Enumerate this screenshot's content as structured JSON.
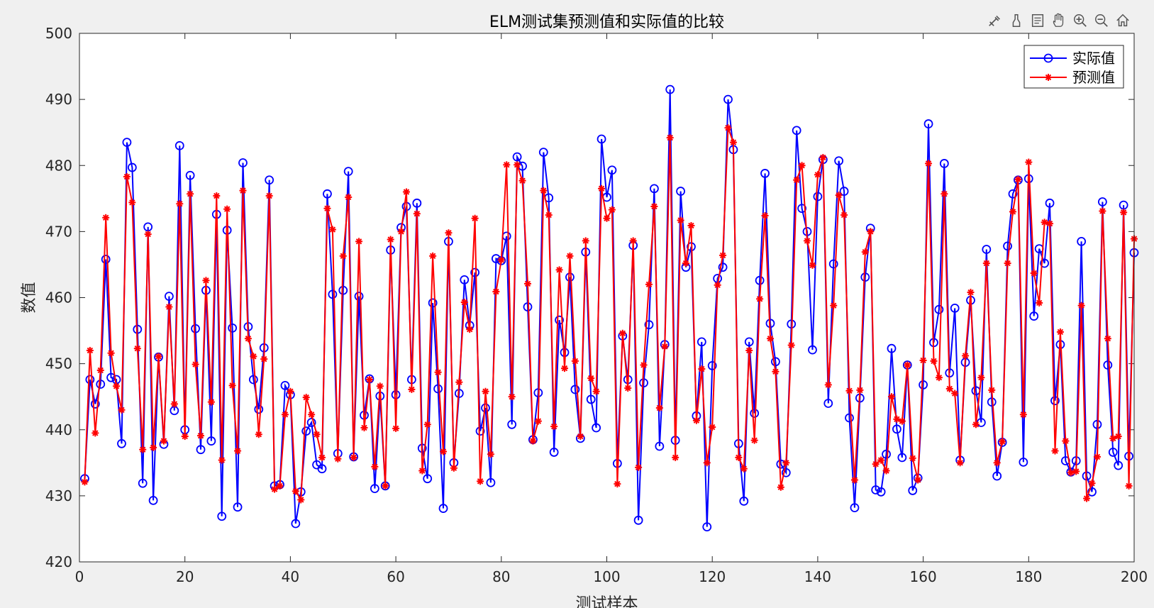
{
  "toolbar": {
    "items": [
      {
        "name": "edit-plot-icon"
      },
      {
        "name": "brush-icon"
      },
      {
        "name": "datatips-icon"
      },
      {
        "name": "pan-hand-icon"
      },
      {
        "name": "zoom-in-icon"
      },
      {
        "name": "zoom-out-icon"
      },
      {
        "name": "home-icon"
      }
    ]
  },
  "chart_data": {
    "type": "line",
    "title": "ELM测试集预测值和实际值的比较",
    "xlabel": "测试样本",
    "ylabel": "数值",
    "xlim": [
      0,
      200
    ],
    "ylim": [
      420,
      500
    ],
    "xticks": [
      0,
      20,
      40,
      60,
      80,
      100,
      120,
      140,
      160,
      180,
      200
    ],
    "yticks": [
      420,
      430,
      440,
      450,
      460,
      470,
      480,
      490,
      500
    ],
    "grid": false,
    "legend_position": "top-right",
    "series": [
      {
        "name": "实际值",
        "color": "#0000ff",
        "marker": "circle",
        "x": [
          1,
          2,
          3,
          4,
          5,
          6,
          7,
          8,
          9,
          10,
          11,
          12,
          13,
          14,
          15,
          16,
          17,
          18,
          19,
          20,
          21,
          22,
          23,
          24,
          25,
          26,
          27,
          28,
          29,
          30,
          31,
          32,
          33,
          34,
          35,
          36,
          37,
          38,
          39,
          40,
          41,
          42,
          43,
          44,
          45,
          46,
          47,
          48,
          49,
          50,
          51,
          52,
          53,
          54,
          55,
          56,
          57,
          58,
          59,
          60,
          61,
          62,
          63,
          64,
          65,
          66,
          67,
          68,
          69,
          70,
          71,
          72,
          73,
          74,
          75,
          76,
          77,
          78,
          79,
          80,
          81,
          82,
          83,
          84,
          85,
          86,
          87,
          88,
          89,
          90,
          91,
          92,
          93,
          94,
          95,
          96,
          97,
          98,
          99,
          100,
          101,
          102,
          103,
          104,
          105,
          106,
          107,
          108,
          109,
          110,
          111,
          112,
          113,
          114,
          115,
          116,
          117,
          118,
          119,
          120,
          121,
          122,
          123,
          124,
          125,
          126,
          127,
          128,
          129,
          130,
          131,
          132,
          133,
          134,
          135,
          136,
          137,
          138,
          139,
          140,
          141,
          142,
          143,
          144,
          145,
          146,
          147,
          148,
          149,
          150,
          151,
          152,
          153,
          154,
          155,
          156,
          157,
          158,
          159,
          160,
          161,
          162,
          163,
          164,
          165,
          166,
          167,
          168,
          169,
          170,
          171,
          172,
          173,
          174,
          175,
          176,
          177,
          178,
          179,
          180,
          181,
          182,
          183,
          184,
          185,
          186,
          187,
          188,
          189,
          190,
          191,
          192,
          193,
          194,
          195,
          196,
          197,
          198,
          199,
          200
        ],
        "values": [
          432.6,
          447.6,
          443.9,
          446.9,
          465.8,
          447.9,
          447.6,
          437.9,
          483.5,
          479.7,
          455.2,
          431.9,
          470.7,
          429.3,
          451.0,
          437.8,
          460.2,
          442.9,
          483.0,
          440.0,
          478.5,
          455.3,
          437.0,
          461.1,
          438.3,
          472.6,
          426.9,
          470.2,
          455.4,
          428.3,
          480.4,
          455.6,
          447.6,
          443.1,
          452.4,
          477.8,
          431.5,
          431.7,
          446.7,
          445.3,
          425.8,
          430.6,
          439.8,
          441.1,
          434.7,
          434.1,
          475.7,
          460.5,
          436.4,
          461.1,
          479.1,
          435.9,
          460.2,
          442.2,
          447.7,
          431.1,
          445.1,
          431.5,
          467.2,
          445.3,
          470.6,
          473.8,
          447.6,
          474.3,
          437.2,
          432.6,
          459.2,
          446.2,
          428.1,
          468.5,
          435.0,
          445.5,
          462.7,
          455.8,
          463.8,
          439.8,
          443.3,
          432.0,
          465.9,
          465.6,
          469.3,
          440.8,
          481.3,
          479.9,
          458.6,
          438.5,
          445.6,
          482.0,
          475.1,
          436.6,
          456.6,
          451.7,
          463.1,
          446.1,
          438.7,
          466.9,
          444.6,
          440.3,
          484.0,
          475.2,
          479.3,
          434.9,
          454.2,
          447.6,
          467.9,
          426.3,
          447.1,
          455.9,
          476.5,
          437.5,
          452.9,
          491.5,
          438.4,
          476.1,
          464.6,
          467.7,
          442.1,
          453.3,
          425.3,
          449.7,
          462.9,
          464.6,
          490.0,
          482.4,
          437.9,
          429.2,
          453.3,
          442.5,
          462.6,
          478.8,
          456.1,
          450.3,
          434.8,
          433.5,
          456.0,
          485.3,
          473.5,
          470.0,
          452.1,
          475.3,
          480.9,
          444.0,
          465.1,
          480.7,
          476.1,
          441.8,
          428.2,
          444.8,
          463.1,
          470.5,
          430.9,
          430.6,
          436.3,
          452.3,
          440.1,
          435.8,
          449.8,
          430.8,
          432.7,
          446.8,
          486.3,
          453.2,
          458.2,
          480.3,
          448.6,
          458.4,
          435.4,
          450.2,
          459.6,
          445.9,
          441.1,
          467.3,
          444.2,
          433.0,
          438.1,
          467.8,
          475.7,
          477.8,
          435.1,
          478.0,
          457.2,
          467.4,
          465.2,
          474.3,
          444.4,
          452.9,
          435.3,
          433.6,
          435.3,
          468.5,
          433.0,
          430.6,
          440.8,
          474.5,
          449.8,
          436.6,
          434.6,
          474.0,
          436.0,
          466.8
        ]
      },
      {
        "name": "预测值",
        "color": "#ff0000",
        "marker": "asterisk",
        "x": [
          1,
          2,
          3,
          4,
          5,
          6,
          7,
          8,
          9,
          10,
          11,
          12,
          13,
          14,
          15,
          16,
          17,
          18,
          19,
          20,
          21,
          22,
          23,
          24,
          25,
          26,
          27,
          28,
          29,
          30,
          31,
          32,
          33,
          34,
          35,
          36,
          37,
          38,
          39,
          40,
          41,
          42,
          43,
          44,
          45,
          46,
          47,
          48,
          49,
          50,
          51,
          52,
          53,
          54,
          55,
          56,
          57,
          58,
          59,
          60,
          61,
          62,
          63,
          64,
          65,
          66,
          67,
          68,
          69,
          70,
          71,
          72,
          73,
          74,
          75,
          76,
          77,
          78,
          79,
          80,
          81,
          82,
          83,
          84,
          85,
          86,
          87,
          88,
          89,
          90,
          91,
          92,
          93,
          94,
          95,
          96,
          97,
          98,
          99,
          100,
          101,
          102,
          103,
          104,
          105,
          106,
          107,
          108,
          109,
          110,
          111,
          112,
          113,
          114,
          115,
          116,
          117,
          118,
          119,
          120,
          121,
          122,
          123,
          124,
          125,
          126,
          127,
          128,
          129,
          130,
          131,
          132,
          133,
          134,
          135,
          136,
          137,
          138,
          139,
          140,
          141,
          142,
          143,
          144,
          145,
          146,
          147,
          148,
          149,
          150,
          151,
          152,
          153,
          154,
          155,
          156,
          157,
          158,
          159,
          160,
          161,
          162,
          163,
          164,
          165,
          166,
          167,
          168,
          169,
          170,
          171,
          172,
          173,
          174,
          175,
          176,
          177,
          178,
          179,
          180,
          181,
          182,
          183,
          184,
          185,
          186,
          187,
          188,
          189,
          190,
          191,
          192,
          193,
          194,
          195,
          196,
          197,
          198,
          199,
          200
        ],
        "values": [
          432.1,
          452.0,
          439.5,
          449.0,
          472.1,
          451.6,
          446.6,
          443.0,
          478.3,
          474.4,
          452.3,
          437.0,
          469.6,
          437.3,
          451.1,
          438.3,
          458.6,
          443.9,
          474.2,
          439.0,
          475.7,
          449.9,
          439.1,
          462.6,
          444.2,
          475.4,
          435.4,
          473.4,
          446.7,
          436.8,
          476.2,
          453.8,
          451.1,
          439.3,
          450.7,
          475.4,
          431.0,
          431.5,
          442.3,
          445.8,
          430.7,
          429.4,
          444.9,
          442.3,
          439.3,
          435.8,
          473.5,
          470.3,
          435.6,
          466.3,
          475.2,
          435.8,
          468.5,
          440.3,
          447.6,
          434.4,
          446.6,
          431.5,
          468.8,
          440.2,
          470.0,
          476.0,
          446.1,
          472.7,
          433.8,
          440.8,
          466.3,
          448.7,
          436.7,
          469.8,
          434.2,
          447.2,
          459.3,
          455.2,
          472.0,
          432.2,
          445.8,
          436.3,
          460.9,
          465.7,
          480.1,
          445.0,
          480.1,
          477.7,
          462.1,
          438.3,
          441.3,
          476.2,
          472.5,
          440.5,
          464.2,
          449.3,
          466.3,
          450.4,
          439.0,
          468.6,
          447.8,
          445.8,
          476.5,
          472.0,
          473.3,
          431.8,
          454.6,
          446.3,
          468.6,
          434.3,
          449.8,
          462.0,
          473.8,
          443.3,
          452.6,
          484.2,
          435.8,
          471.7,
          465.2,
          470.9,
          441.4,
          449.2,
          435.0,
          440.4,
          461.9,
          466.4,
          485.7,
          483.5,
          435.8,
          434.1,
          452.0,
          438.4,
          459.8,
          472.4,
          453.8,
          448.8,
          431.3,
          435.0,
          452.8,
          477.8,
          480.0,
          468.6,
          464.9,
          478.6,
          481.2,
          446.8,
          458.8,
          475.5,
          472.5,
          445.9,
          432.4,
          446.0,
          466.9,
          470.0,
          434.8,
          435.4,
          433.8,
          445.0,
          441.6,
          441.3,
          449.8,
          435.7,
          432.4,
          450.5,
          480.3,
          450.4,
          447.9,
          475.7,
          446.2,
          445.5,
          435.0,
          451.2,
          460.8,
          440.8,
          447.9,
          465.2,
          446.0,
          435.0,
          438.2,
          465.2,
          473.0,
          477.9,
          442.3,
          480.5,
          463.7,
          459.2,
          471.4,
          471.2,
          436.8,
          454.8,
          438.3,
          433.5,
          433.7,
          458.8,
          429.6,
          431.9,
          435.9,
          473.1,
          453.8,
          438.7,
          439.0,
          472.9,
          431.5,
          468.9
        ]
      }
    ]
  }
}
